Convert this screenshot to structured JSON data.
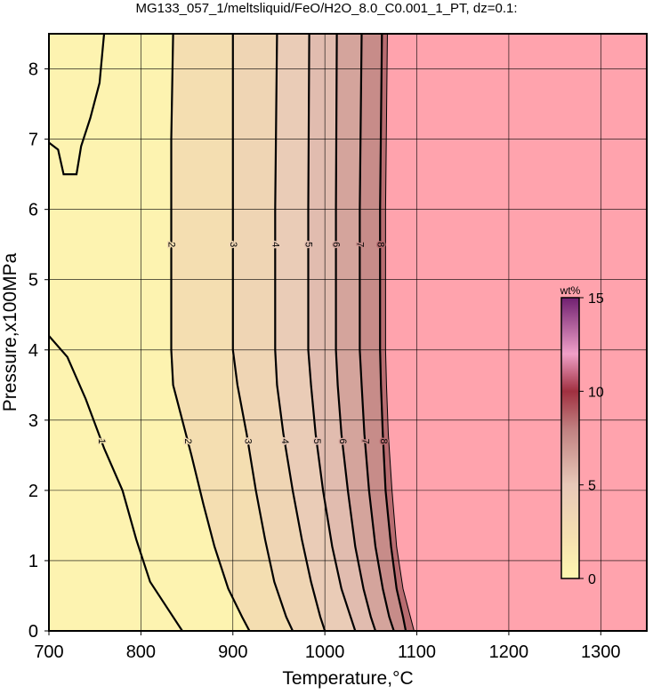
{
  "chart_data": {
    "type": "contour",
    "title": "MG133_057_1/meltsliquid/FeO/H2O_8.0_C0.001_1_PT, dz=0.1:",
    "x_label": "Temperature,°C",
    "y_label": "Pressure,x100MPa",
    "xlim": [
      700,
      1350
    ],
    "xticks": [
      700,
      800,
      900,
      1000,
      1100,
      1200,
      1300
    ],
    "ylim": [
      0,
      8.5
    ],
    "yticks": [
      0,
      1,
      2,
      3,
      4,
      5,
      6,
      7,
      8
    ],
    "grid": true,
    "contours": [
      {
        "level": 1,
        "x": [
          700,
          720,
          740,
          760,
          780,
          795,
          810,
          830,
          845,
          null,
          700,
          710,
          716,
          730,
          735,
          745,
          755,
          760
        ],
        "y": [
          4.2,
          3.9,
          3.3,
          2.6,
          2.0,
          1.3,
          0.7,
          0.3,
          0,
          null,
          6.95,
          6.85,
          6.5,
          6.5,
          6.9,
          7.3,
          7.8,
          8.5
        ]
      },
      {
        "level": 2,
        "x": [
          835,
          833,
          833,
          833,
          835,
          845,
          855,
          868,
          880,
          895,
          910,
          918
        ],
        "y": [
          8.5,
          7,
          5.5,
          4,
          3.5,
          3,
          2.5,
          1.8,
          1.2,
          0.6,
          0.2,
          0
        ]
      },
      {
        "level": 3,
        "x": [
          900,
          900,
          900,
          905,
          915,
          925,
          935,
          945,
          958,
          965
        ],
        "y": [
          8.5,
          6,
          4,
          3.5,
          2.8,
          2,
          1.3,
          0.7,
          0.2,
          0
        ]
      },
      {
        "level": 4,
        "x": [
          948,
          946,
          946,
          948,
          955,
          965,
          975,
          985,
          995,
          1000
        ],
        "y": [
          8.5,
          6,
          4,
          3.5,
          2.8,
          2,
          1.3,
          0.7,
          0.2,
          0
        ]
      },
      {
        "level": 5,
        "x": [
          983,
          982,
          982,
          985,
          990,
          998,
          1008,
          1018,
          1028,
          1033
        ],
        "y": [
          8.5,
          6,
          4,
          3.5,
          2.8,
          2,
          1.2,
          0.6,
          0.2,
          0
        ]
      },
      {
        "level": 6,
        "x": [
          1013,
          1012,
          1012,
          1014,
          1018,
          1025,
          1033,
          1042,
          1050,
          1055
        ],
        "y": [
          8.5,
          6,
          4,
          3.5,
          2.8,
          2,
          1.2,
          0.6,
          0.2,
          0
        ]
      },
      {
        "level": 7,
        "x": [
          1040,
          1038,
          1038,
          1040,
          1043,
          1048,
          1055,
          1063,
          1070,
          1075
        ],
        "y": [
          8.5,
          6,
          4,
          3.5,
          2.8,
          2,
          1.2,
          0.6,
          0.2,
          0
        ]
      },
      {
        "level": 8,
        "x": [
          1062,
          1060,
          1060,
          1061,
          1063,
          1066,
          1072,
          1078,
          1085,
          1088
        ],
        "y": [
          8.5,
          6,
          4,
          3.5,
          2.8,
          2,
          1.2,
          0.6,
          0.2,
          0
        ]
      }
    ],
    "region": {
      "color": "#ffa3ad",
      "x": [
        1068,
        1066,
        1066,
        1067,
        1069,
        1073,
        1078,
        1085,
        1093,
        1097
      ],
      "y": [
        8.5,
        6,
        4,
        3.5,
        2.8,
        2,
        1.2,
        0.6,
        0.2,
        0
      ]
    },
    "colormap": [
      [
        0,
        "#fff8b0"
      ],
      [
        2,
        "#f6e2b0"
      ],
      [
        5,
        "#e8c8b8"
      ],
      [
        8,
        "#c08080"
      ],
      [
        10,
        "#a03040"
      ],
      [
        12,
        "#f0a0c8"
      ],
      [
        15,
        "#702070"
      ]
    ],
    "colorbar": {
      "label": "wt%",
      "lim": [
        0,
        15
      ],
      "ticks": [
        0,
        5,
        10,
        15
      ]
    }
  }
}
